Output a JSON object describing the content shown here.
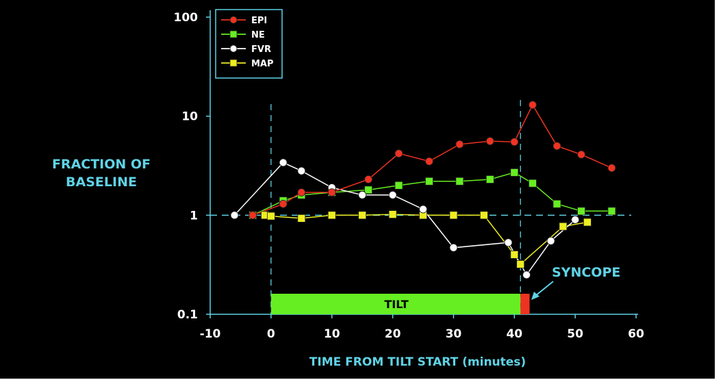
{
  "chart_data": {
    "type": "line",
    "yscale": "log",
    "ylabel": [
      "FRACTION OF",
      "BASELINE"
    ],
    "xlabel": "TIME FROM TILT START (minutes)",
    "xlim": [
      -10,
      60
    ],
    "ylim": [
      0.1,
      100
    ],
    "xticks": [
      "-10",
      "0",
      "10",
      "20",
      "30",
      "40",
      "50",
      "60"
    ],
    "yticks": [
      "100",
      "10",
      "1",
      "0.1"
    ],
    "legend": {
      "placement": "top-left"
    },
    "baseline": 1,
    "tilt_start": 0,
    "tilt_end": 41,
    "bars": {
      "tilt": {
        "label": "TILT",
        "start": 0,
        "end": 41,
        "color": "#66ee22"
      },
      "syncope": {
        "start": 41,
        "end": 42.5,
        "color": "#ee3322"
      }
    },
    "annotation": {
      "text": "SYNCOPE"
    },
    "series": [
      {
        "name": "EPI",
        "marker": "circle",
        "color": "#ee3322",
        "points": [
          [
            -3,
            1.0
          ],
          [
            2,
            1.3
          ],
          [
            5,
            1.7
          ],
          [
            10,
            1.7
          ],
          [
            16,
            2.3
          ],
          [
            21,
            4.2
          ],
          [
            26,
            3.5
          ],
          [
            31,
            5.2
          ],
          [
            36,
            5.6
          ],
          [
            40,
            5.5
          ],
          [
            43,
            13
          ],
          [
            47,
            5.0
          ],
          [
            51,
            4.1
          ],
          [
            56,
            3.0
          ]
        ]
      },
      {
        "name": "NE",
        "marker": "square",
        "color": "#66ee22",
        "points": [
          [
            -3,
            1.0
          ],
          [
            2,
            1.4
          ],
          [
            5,
            1.6
          ],
          [
            10,
            1.7
          ],
          [
            16,
            1.8
          ],
          [
            21,
            2.0
          ],
          [
            26,
            2.2
          ],
          [
            31,
            2.2
          ],
          [
            36,
            2.3
          ],
          [
            40,
            2.7
          ],
          [
            43,
            2.1
          ],
          [
            47,
            1.3
          ],
          [
            51,
            1.1
          ],
          [
            56,
            1.1
          ]
        ]
      },
      {
        "name": "FVR",
        "marker": "circle",
        "color": "#ffffff",
        "points": [
          [
            -6,
            1.0
          ],
          [
            2,
            3.4
          ],
          [
            5,
            2.8
          ],
          [
            10,
            1.9
          ],
          [
            15,
            1.6
          ],
          [
            20,
            1.6
          ],
          [
            25,
            1.15
          ],
          [
            30,
            0.47
          ],
          [
            39,
            0.53
          ],
          [
            42,
            0.25
          ],
          [
            46,
            0.55
          ],
          [
            50,
            0.9
          ]
        ]
      },
      {
        "name": "MAP",
        "marker": "square",
        "color": "#eeee22",
        "points": [
          [
            -1,
            1.0
          ],
          [
            0,
            0.98
          ],
          [
            5,
            0.93
          ],
          [
            10,
            1.0
          ],
          [
            15,
            1.0
          ],
          [
            20,
            1.02
          ],
          [
            25,
            1.0
          ],
          [
            30,
            1.0
          ],
          [
            35,
            1.0
          ],
          [
            40,
            0.4
          ],
          [
            41,
            0.32
          ],
          [
            48,
            0.77
          ],
          [
            52,
            0.85
          ]
        ]
      }
    ]
  }
}
